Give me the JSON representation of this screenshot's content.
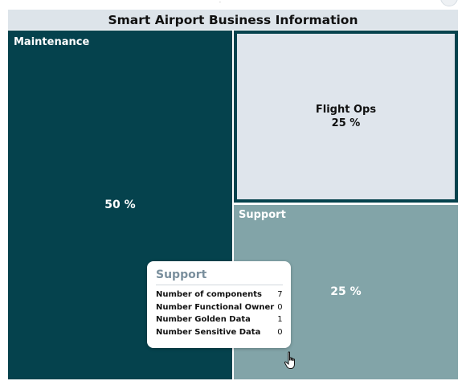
{
  "colors": {
    "title_bg": "#dde4ea",
    "maintenance": "#05424d",
    "flight_ops": "#dfe5ec",
    "support": "#82a4a8",
    "border": "#05424d",
    "tooltip_title": "#7a8f9d"
  },
  "chart_data": {
    "type": "treemap",
    "title": "Smart Airport Business Information",
    "series": [
      {
        "name": "Maintenance",
        "value": 50,
        "label": "50 %"
      },
      {
        "name": "Flight Ops",
        "value": 25,
        "label": "25 %"
      },
      {
        "name": "Support",
        "value": 25,
        "label": "25 %"
      }
    ]
  },
  "tooltip": {
    "title": "Support",
    "rows": [
      {
        "label": "Number of components",
        "value": "7"
      },
      {
        "label": "Number Functional Owner",
        "value": "0"
      },
      {
        "label": "Number Golden Data",
        "value": "1"
      },
      {
        "label": "Number Sensitive Data",
        "value": "0"
      }
    ]
  },
  "cursor_icon": "hand-pointer-icon"
}
